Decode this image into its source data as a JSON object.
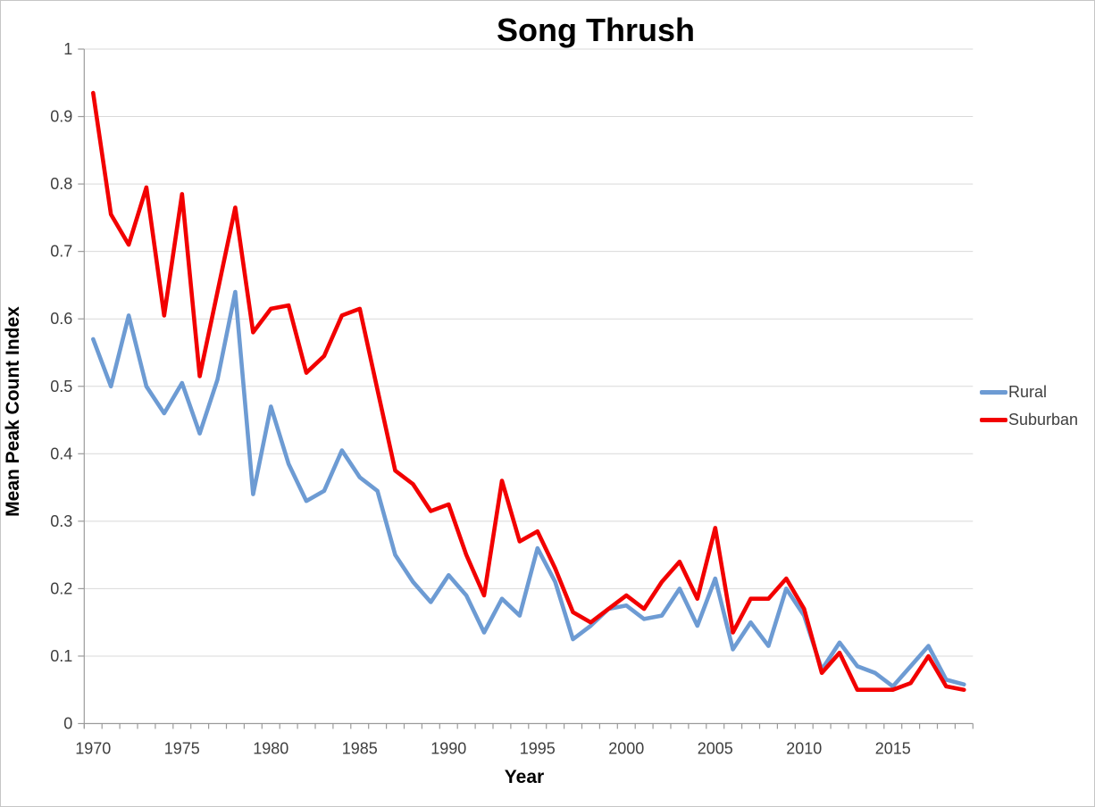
{
  "title": "Song Thrush",
  "axes": {
    "x_title": "Year",
    "y_title": "Mean Peak Count Index",
    "x_tick_labels": [
      "1970",
      "1975",
      "1980",
      "1985",
      "1990",
      "1995",
      "2000",
      "2005",
      "2010",
      "2015"
    ],
    "y_tick_labels": [
      "0",
      "0.1",
      "0.2",
      "0.3",
      "0.4",
      "0.5",
      "0.6",
      "0.7",
      "0.8",
      "0.9",
      "1"
    ]
  },
  "legend": {
    "position": "right",
    "entries": [
      {
        "label": "Rural",
        "color": "#6d9bd3"
      },
      {
        "label": "Suburban",
        "color": "#f20000"
      }
    ]
  },
  "colors": {
    "gridline": "#d9d9d9",
    "axis_line": "#9b9b9b",
    "tick_mark": "#9b9b9b",
    "tick_text": "#3f3f3f",
    "title_text": "#000000"
  },
  "chart_data": {
    "type": "line",
    "title": "Song Thrush",
    "xlabel": "Year",
    "ylabel": "Mean Peak Count Index",
    "ylim": [
      0,
      1
    ],
    "ytick_step": 0.1,
    "grid": "horizontal",
    "legend_position": "right",
    "x": [
      1970,
      1971,
      1972,
      1973,
      1974,
      1975,
      1976,
      1977,
      1978,
      1979,
      1980,
      1981,
      1982,
      1983,
      1984,
      1985,
      1986,
      1987,
      1988,
      1989,
      1990,
      1991,
      1992,
      1993,
      1994,
      1995,
      1996,
      1997,
      1998,
      1999,
      2000,
      2001,
      2002,
      2003,
      2004,
      2005,
      2006,
      2007,
      2008,
      2009,
      2010,
      2011,
      2012,
      2013,
      2014,
      2015,
      2016,
      2017,
      2018,
      2019
    ],
    "series": [
      {
        "name": "Rural",
        "color": "#6d9bd3",
        "values": [
          0.57,
          0.5,
          0.605,
          0.5,
          0.46,
          0.505,
          0.43,
          0.51,
          0.64,
          0.34,
          0.47,
          0.385,
          0.33,
          0.345,
          0.405,
          0.365,
          0.345,
          0.25,
          0.21,
          0.18,
          0.22,
          0.19,
          0.135,
          0.185,
          0.16,
          0.26,
          0.21,
          0.125,
          0.145,
          0.17,
          0.175,
          0.155,
          0.16,
          0.2,
          0.145,
          0.215,
          0.11,
          0.15,
          0.115,
          0.2,
          0.16,
          0.08,
          0.12,
          0.085,
          0.075,
          0.055,
          0.085,
          0.115,
          0.065,
          0.058
        ]
      },
      {
        "name": "Suburban",
        "color": "#f20000",
        "values": [
          0.935,
          0.755,
          0.71,
          0.795,
          0.605,
          0.785,
          0.515,
          0.64,
          0.765,
          0.58,
          0.615,
          0.62,
          0.52,
          0.545,
          0.605,
          0.615,
          0.495,
          0.375,
          0.355,
          0.315,
          0.325,
          0.25,
          0.19,
          0.36,
          0.27,
          0.285,
          0.23,
          0.165,
          0.15,
          0.17,
          0.19,
          0.17,
          0.21,
          0.24,
          0.185,
          0.29,
          0.135,
          0.185,
          0.185,
          0.215,
          0.17,
          0.075,
          0.105,
          0.05,
          0.05,
          0.05,
          0.06,
          0.1,
          0.055,
          0.05
        ]
      }
    ]
  }
}
